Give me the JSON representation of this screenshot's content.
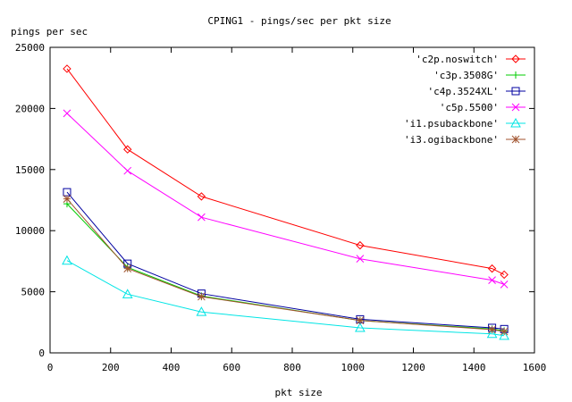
{
  "chart_data": {
    "type": "line",
    "title": "CPING1 - pings/sec per pkt size",
    "xlabel": "pkt size",
    "ylabel": "pings per sec",
    "xlim": [
      0,
      1600
    ],
    "ylim": [
      0,
      25000
    ],
    "xticks": [
      0,
      200,
      400,
      600,
      800,
      1000,
      1200,
      1400,
      1600
    ],
    "yticks": [
      0,
      5000,
      10000,
      15000,
      20000,
      25000
    ],
    "grid": false,
    "legend_position": "top-right",
    "series": [
      {
        "name": "'c2p.noswitch'",
        "color": "#ff0000",
        "marker": "diamond",
        "x": [
          56,
          256,
          500,
          1024,
          1460,
          1500
        ],
        "y": [
          23250,
          16650,
          12800,
          8800,
          6900,
          6400
        ]
      },
      {
        "name": "'c3p.3508G'",
        "color": "#00cc00",
        "marker": "plus",
        "x": [
          56,
          256,
          500,
          1024,
          1460,
          1500
        ],
        "y": [
          12200,
          7000,
          4650,
          2650,
          1950,
          1800
        ]
      },
      {
        "name": "'c4p.3524XL'",
        "color": "#0000a0",
        "marker": "square",
        "x": [
          56,
          256,
          500,
          1024,
          1460,
          1500
        ],
        "y": [
          13150,
          7300,
          4850,
          2750,
          2050,
          1950
        ]
      },
      {
        "name": "'c5p.5500'",
        "color": "#ff00ff",
        "marker": "x",
        "x": [
          56,
          256,
          500,
          1024,
          1460,
          1500
        ],
        "y": [
          19600,
          14900,
          11100,
          7700,
          5950,
          5600
        ]
      },
      {
        "name": "'i1.psubackbone'",
        "color": "#00e5e5",
        "marker": "triangle",
        "x": [
          56,
          256,
          500,
          1024,
          1460,
          1500
        ],
        "y": [
          7550,
          4800,
          3350,
          2050,
          1550,
          1400
        ]
      },
      {
        "name": "'i3.ogibackbone'",
        "color": "#a0522d",
        "marker": "star",
        "x": [
          56,
          256,
          500,
          1024,
          1460,
          1500
        ],
        "y": [
          12600,
          6900,
          4600,
          2650,
          1900,
          1750
        ]
      }
    ]
  }
}
